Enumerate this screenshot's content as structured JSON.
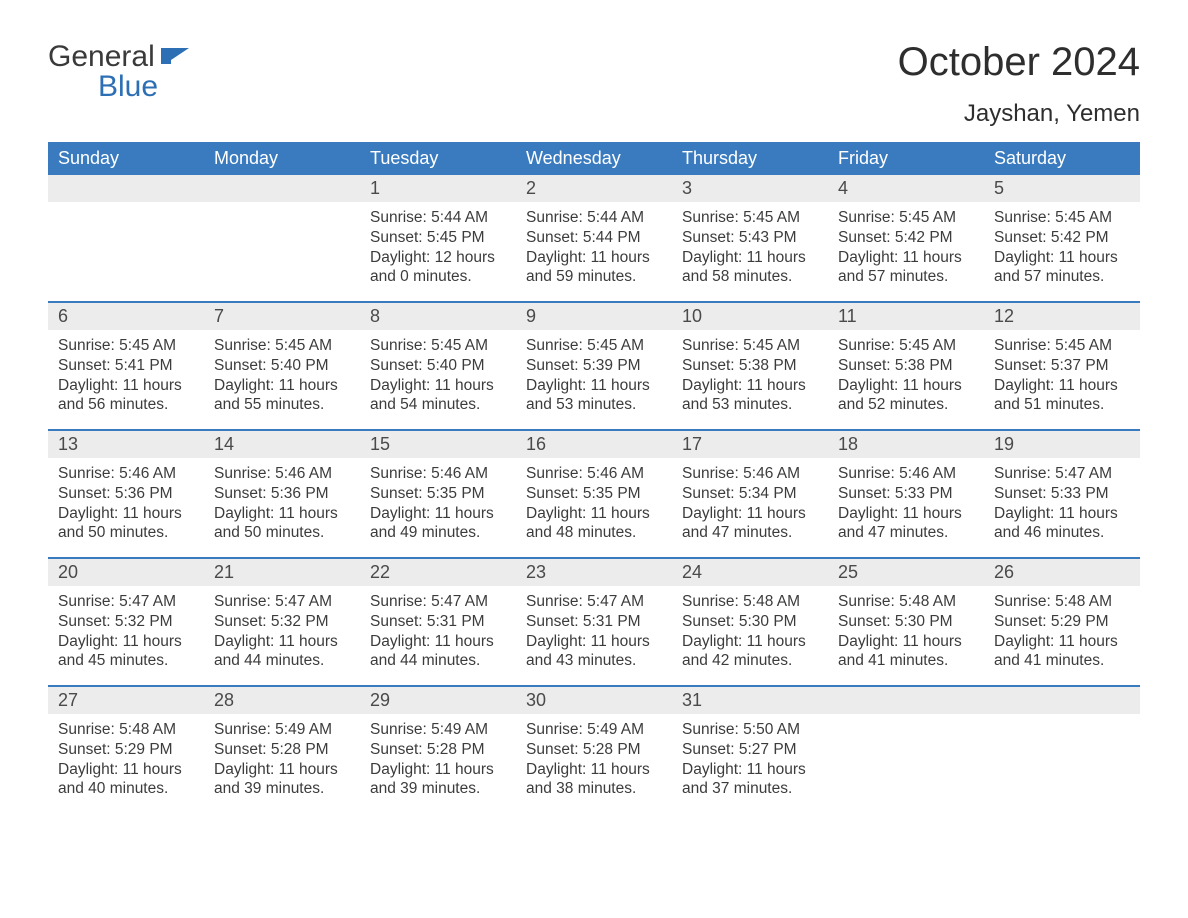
{
  "logo": {
    "word1": "General",
    "word2": "Blue"
  },
  "title": "October 2024",
  "location": "Jayshan, Yemen",
  "header_bg": "#3a7bbf",
  "header_fg": "#ffffff",
  "daynum_bg": "#ececec",
  "week_border": "#3a7bbf",
  "text_color": "#3c3c3c",
  "weekdays": [
    "Sunday",
    "Monday",
    "Tuesday",
    "Wednesday",
    "Thursday",
    "Friday",
    "Saturday"
  ],
  "weeks": [
    [
      {
        "n": "",
        "sunrise": "",
        "sunset": "",
        "daylight": ""
      },
      {
        "n": "",
        "sunrise": "",
        "sunset": "",
        "daylight": ""
      },
      {
        "n": "1",
        "sunrise": "5:44 AM",
        "sunset": "5:45 PM",
        "daylight": "12 hours and 0 minutes."
      },
      {
        "n": "2",
        "sunrise": "5:44 AM",
        "sunset": "5:44 PM",
        "daylight": "11 hours and 59 minutes."
      },
      {
        "n": "3",
        "sunrise": "5:45 AM",
        "sunset": "5:43 PM",
        "daylight": "11 hours and 58 minutes."
      },
      {
        "n": "4",
        "sunrise": "5:45 AM",
        "sunset": "5:42 PM",
        "daylight": "11 hours and 57 minutes."
      },
      {
        "n": "5",
        "sunrise": "5:45 AM",
        "sunset": "5:42 PM",
        "daylight": "11 hours and 57 minutes."
      }
    ],
    [
      {
        "n": "6",
        "sunrise": "5:45 AM",
        "sunset": "5:41 PM",
        "daylight": "11 hours and 56 minutes."
      },
      {
        "n": "7",
        "sunrise": "5:45 AM",
        "sunset": "5:40 PM",
        "daylight": "11 hours and 55 minutes."
      },
      {
        "n": "8",
        "sunrise": "5:45 AM",
        "sunset": "5:40 PM",
        "daylight": "11 hours and 54 minutes."
      },
      {
        "n": "9",
        "sunrise": "5:45 AM",
        "sunset": "5:39 PM",
        "daylight": "11 hours and 53 minutes."
      },
      {
        "n": "10",
        "sunrise": "5:45 AM",
        "sunset": "5:38 PM",
        "daylight": "11 hours and 53 minutes."
      },
      {
        "n": "11",
        "sunrise": "5:45 AM",
        "sunset": "5:38 PM",
        "daylight": "11 hours and 52 minutes."
      },
      {
        "n": "12",
        "sunrise": "5:45 AM",
        "sunset": "5:37 PM",
        "daylight": "11 hours and 51 minutes."
      }
    ],
    [
      {
        "n": "13",
        "sunrise": "5:46 AM",
        "sunset": "5:36 PM",
        "daylight": "11 hours and 50 minutes."
      },
      {
        "n": "14",
        "sunrise": "5:46 AM",
        "sunset": "5:36 PM",
        "daylight": "11 hours and 50 minutes."
      },
      {
        "n": "15",
        "sunrise": "5:46 AM",
        "sunset": "5:35 PM",
        "daylight": "11 hours and 49 minutes."
      },
      {
        "n": "16",
        "sunrise": "5:46 AM",
        "sunset": "5:35 PM",
        "daylight": "11 hours and 48 minutes."
      },
      {
        "n": "17",
        "sunrise": "5:46 AM",
        "sunset": "5:34 PM",
        "daylight": "11 hours and 47 minutes."
      },
      {
        "n": "18",
        "sunrise": "5:46 AM",
        "sunset": "5:33 PM",
        "daylight": "11 hours and 47 minutes."
      },
      {
        "n": "19",
        "sunrise": "5:47 AM",
        "sunset": "5:33 PM",
        "daylight": "11 hours and 46 minutes."
      }
    ],
    [
      {
        "n": "20",
        "sunrise": "5:47 AM",
        "sunset": "5:32 PM",
        "daylight": "11 hours and 45 minutes."
      },
      {
        "n": "21",
        "sunrise": "5:47 AM",
        "sunset": "5:32 PM",
        "daylight": "11 hours and 44 minutes."
      },
      {
        "n": "22",
        "sunrise": "5:47 AM",
        "sunset": "5:31 PM",
        "daylight": "11 hours and 44 minutes."
      },
      {
        "n": "23",
        "sunrise": "5:47 AM",
        "sunset": "5:31 PM",
        "daylight": "11 hours and 43 minutes."
      },
      {
        "n": "24",
        "sunrise": "5:48 AM",
        "sunset": "5:30 PM",
        "daylight": "11 hours and 42 minutes."
      },
      {
        "n": "25",
        "sunrise": "5:48 AM",
        "sunset": "5:30 PM",
        "daylight": "11 hours and 41 minutes."
      },
      {
        "n": "26",
        "sunrise": "5:48 AM",
        "sunset": "5:29 PM",
        "daylight": "11 hours and 41 minutes."
      }
    ],
    [
      {
        "n": "27",
        "sunrise": "5:48 AM",
        "sunset": "5:29 PM",
        "daylight": "11 hours and 40 minutes."
      },
      {
        "n": "28",
        "sunrise": "5:49 AM",
        "sunset": "5:28 PM",
        "daylight": "11 hours and 39 minutes."
      },
      {
        "n": "29",
        "sunrise": "5:49 AM",
        "sunset": "5:28 PM",
        "daylight": "11 hours and 39 minutes."
      },
      {
        "n": "30",
        "sunrise": "5:49 AM",
        "sunset": "5:28 PM",
        "daylight": "11 hours and 38 minutes."
      },
      {
        "n": "31",
        "sunrise": "5:50 AM",
        "sunset": "5:27 PM",
        "daylight": "11 hours and 37 minutes."
      },
      {
        "n": "",
        "sunrise": "",
        "sunset": "",
        "daylight": ""
      },
      {
        "n": "",
        "sunrise": "",
        "sunset": "",
        "daylight": ""
      }
    ]
  ]
}
